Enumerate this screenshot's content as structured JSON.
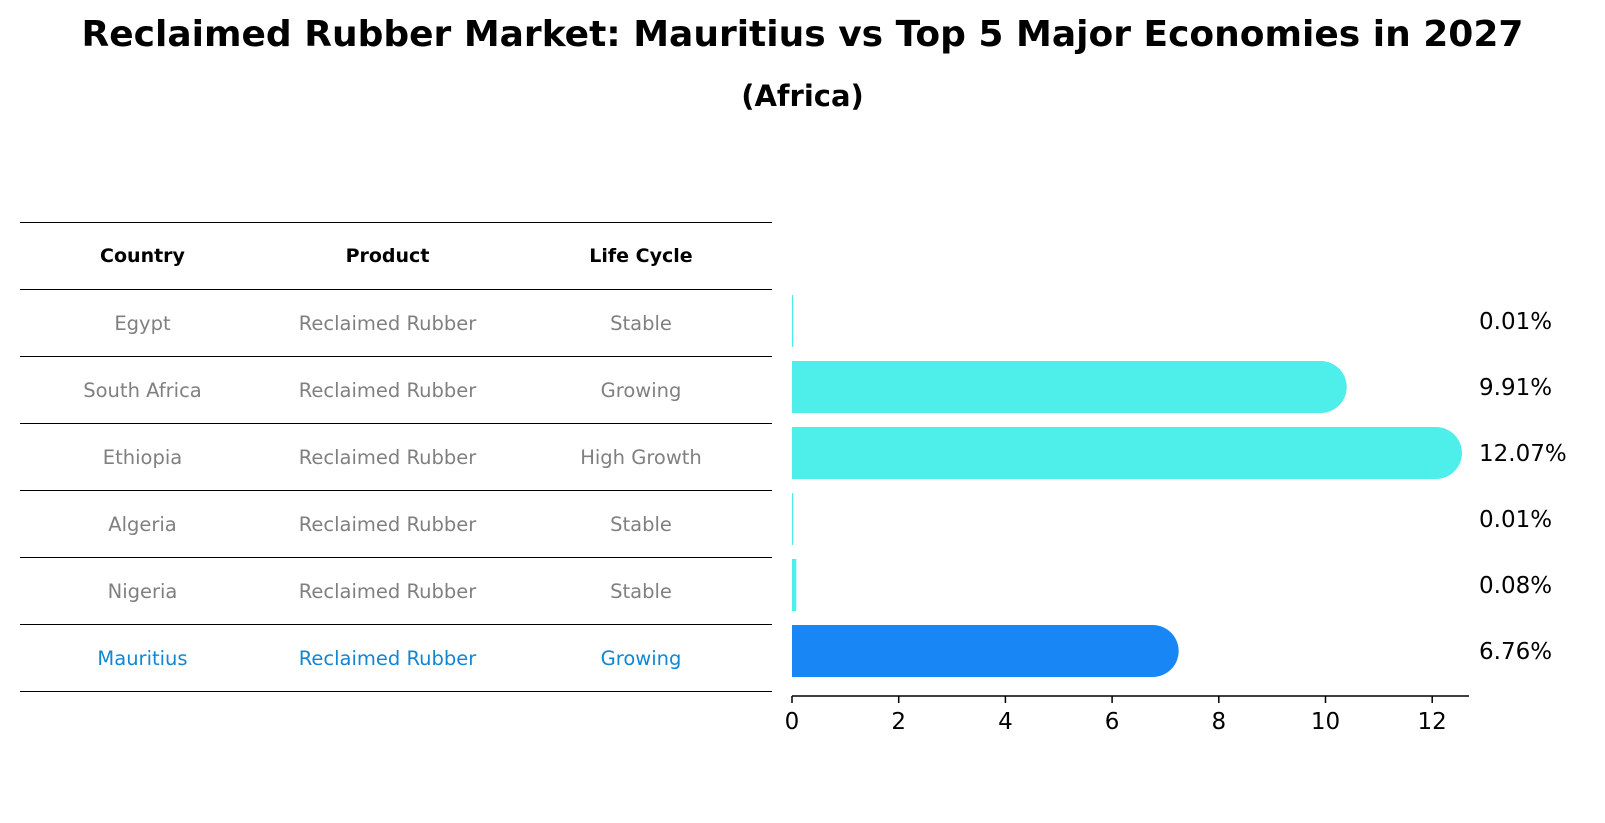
{
  "title": "Reclaimed Rubber Market: Mauritius vs Top 5 Major Economies in 2027",
  "subtitle": "(Africa)",
  "table": {
    "headers": [
      "Country",
      "Product",
      "Life Cycle"
    ],
    "rows": [
      [
        "Egypt",
        "Reclaimed Rubber",
        "Stable"
      ],
      [
        "South Africa",
        "Reclaimed Rubber",
        "Growing"
      ],
      [
        "Ethiopia",
        "Reclaimed Rubber",
        "High Growth"
      ],
      [
        "Algeria",
        "Reclaimed Rubber",
        "Stable"
      ],
      [
        "Nigeria",
        "Reclaimed Rubber",
        "Stable"
      ],
      [
        "Mauritius",
        "Reclaimed Rubber",
        "Growing"
      ]
    ]
  },
  "colors": {
    "bar": "#4eeeea",
    "highlight_bar": "#1887f5",
    "highlight_text": "#1187d4",
    "row_text": "#808080"
  },
  "chart_data": {
    "type": "bar",
    "orientation": "horizontal",
    "categories": [
      "Egypt",
      "South Africa",
      "Ethiopia",
      "Algeria",
      "Nigeria",
      "Mauritius"
    ],
    "values": [
      0.01,
      9.91,
      12.07,
      0.01,
      0.08,
      6.76
    ],
    "value_labels": [
      "0.01%",
      "9.91%",
      "12.07%",
      "0.01%",
      "0.08%",
      "6.76%"
    ],
    "highlight": "Mauritius",
    "xlim": [
      0,
      12.7
    ],
    "xticks": [
      0,
      2,
      4,
      6,
      8,
      10,
      12
    ],
    "grid": false
  }
}
